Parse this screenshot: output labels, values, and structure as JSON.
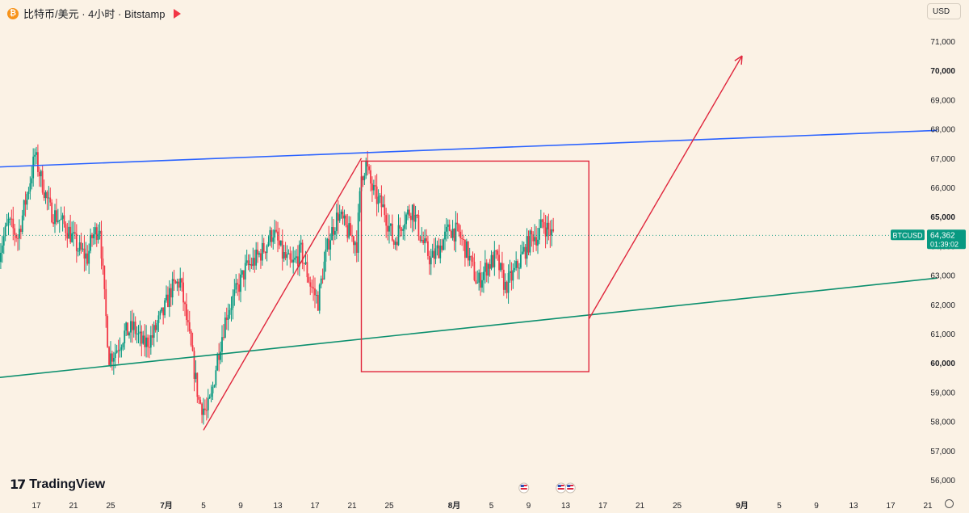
{
  "header": {
    "title": "比特币/美元 · 4小时 · Bitstamp",
    "currency": "USD"
  },
  "logo": {
    "text": "TradingView"
  },
  "price_tag": {
    "symbol": "BTCUSD",
    "price": "64,362",
    "countdown": "01:39:02"
  },
  "colors": {
    "up": "#089981",
    "down": "#f23645",
    "resistance": "#2962ff",
    "support": "#0b8f6e",
    "annotation": "#e0263c",
    "background": "#fbf2e5"
  },
  "chart_data": {
    "type": "candlestick",
    "y_axis": {
      "range": [
        55700,
        71800
      ],
      "ticks": [
        56000,
        57000,
        58000,
        59000,
        60000,
        61000,
        62000,
        63000,
        64000,
        65000,
        66000,
        67000,
        68000,
        69000,
        70000,
        71000
      ],
      "tick_labels": [
        "56,000",
        "57,000",
        "58,000",
        "59,000",
        "60,000",
        "61,000",
        "62,000",
        "63,000",
        "64,000",
        "65,000",
        "66,000",
        "67,000",
        "68,000",
        "69,000",
        "70,000",
        "71,000"
      ],
      "bold_labels": [
        "60,000",
        "65,000",
        "70,000"
      ]
    },
    "x_axis": {
      "ticks": [
        {
          "date": "2024-06-17",
          "label": "17"
        },
        {
          "date": "2024-06-21",
          "label": "21"
        },
        {
          "date": "2024-06-25",
          "label": "25"
        },
        {
          "date": "2024-07-01",
          "label": "7月",
          "bold": true
        },
        {
          "date": "2024-07-05",
          "label": "5"
        },
        {
          "date": "2024-07-09",
          "label": "9"
        },
        {
          "date": "2024-07-13",
          "label": "13"
        },
        {
          "date": "2024-07-17",
          "label": "17"
        },
        {
          "date": "2024-07-21",
          "label": "21"
        },
        {
          "date": "2024-07-25",
          "label": "25"
        },
        {
          "date": "2024-08-01",
          "label": "8月",
          "bold": true
        },
        {
          "date": "2024-08-05",
          "label": "5"
        },
        {
          "date": "2024-08-09",
          "label": "9"
        },
        {
          "date": "2024-08-13",
          "label": "13"
        },
        {
          "date": "2024-08-17",
          "label": "17"
        },
        {
          "date": "2024-08-21",
          "label": "21"
        },
        {
          "date": "2024-08-25",
          "label": "25"
        },
        {
          "date": "2024-09-01",
          "label": "9月",
          "bold": true
        },
        {
          "date": "2024-09-05",
          "label": "5"
        },
        {
          "date": "2024-09-09",
          "label": "9"
        },
        {
          "date": "2024-09-13",
          "label": "13"
        },
        {
          "date": "2024-09-17",
          "label": "17"
        },
        {
          "date": "2024-09-21",
          "label": "21"
        }
      ]
    },
    "price_path": [
      [
        "2024-06-13T00:00",
        63800
      ],
      [
        "2024-06-14T00:00",
        64800
      ],
      [
        "2024-06-15T00:00",
        64300
      ],
      [
        "2024-06-16T12:00",
        66500
      ],
      [
        "2024-06-16T20:00",
        67100
      ],
      [
        "2024-06-17T12:00",
        66300
      ],
      [
        "2024-06-18T12:00",
        65200
      ],
      [
        "2024-06-19T12:00",
        64900
      ],
      [
        "2024-06-20T12:00",
        64500
      ],
      [
        "2024-06-21T12:00",
        63900
      ],
      [
        "2024-06-22T12:00",
        63600
      ],
      [
        "2024-06-23T00:00",
        64300
      ],
      [
        "2024-06-23T20:00",
        64700
      ],
      [
        "2024-06-24T08:00",
        62200
      ],
      [
        "2024-06-24T20:00",
        60200
      ],
      [
        "2024-06-25T12:00",
        60400
      ],
      [
        "2024-06-26T12:00",
        61000
      ],
      [
        "2024-06-27T12:00",
        61200
      ],
      [
        "2024-06-28T12:00",
        60600
      ],
      [
        "2024-06-29T12:00",
        60900
      ],
      [
        "2024-06-30T00:00",
        61300
      ],
      [
        "2024-06-30T16:00",
        61700
      ],
      [
        "2024-07-01T12:00",
        62500
      ],
      [
        "2024-07-02T12:00",
        62800
      ],
      [
        "2024-07-03T12:00",
        60800
      ],
      [
        "2024-07-04T12:00",
        58700
      ],
      [
        "2024-07-05T08:00",
        58300
      ],
      [
        "2024-07-05T20:00",
        58800
      ],
      [
        "2024-07-06T12:00",
        60200
      ],
      [
        "2024-07-07T12:00",
        61700
      ],
      [
        "2024-07-08T12:00",
        62400
      ],
      [
        "2024-07-09T12:00",
        63200
      ],
      [
        "2024-07-10T12:00",
        63500
      ],
      [
        "2024-07-11T12:00",
        63900
      ],
      [
        "2024-07-12T12:00",
        64500
      ],
      [
        "2024-07-13T12:00",
        63700
      ],
      [
        "2024-07-14T12:00",
        63300
      ],
      [
        "2024-07-15T12:00",
        63800
      ],
      [
        "2024-07-16T12:00",
        62700
      ],
      [
        "2024-07-17T08:00",
        62100
      ],
      [
        "2024-07-17T20:00",
        63100
      ],
      [
        "2024-07-18T12:00",
        64200
      ],
      [
        "2024-07-19T12:00",
        65100
      ],
      [
        "2024-07-20T12:00",
        64500
      ],
      [
        "2024-07-21T12:00",
        64100
      ],
      [
        "2024-07-22T00:00",
        66400
      ],
      [
        "2024-07-22T12:00",
        66800
      ],
      [
        "2024-07-23T00:00",
        66100
      ],
      [
        "2024-07-23T12:00",
        65700
      ],
      [
        "2024-07-24T12:00",
        65200
      ],
      [
        "2024-07-25T12:00",
        64100
      ],
      [
        "2024-07-26T12:00",
        64900
      ],
      [
        "2024-07-27T12:00",
        65300
      ],
      [
        "2024-07-28T12:00",
        64200
      ],
      [
        "2024-07-29T12:00",
        63500
      ],
      [
        "2024-07-30T12:00",
        64000
      ],
      [
        "2024-07-31T12:00",
        64600
      ],
      [
        "2024-08-01T12:00",
        64400
      ],
      [
        "2024-08-02T12:00",
        63700
      ],
      [
        "2024-08-03T12:00",
        62700
      ],
      [
        "2024-08-04T12:00",
        63300
      ],
      [
        "2024-08-05T12:00",
        63600
      ],
      [
        "2024-08-06T12:00",
        62600
      ],
      [
        "2024-08-07T12:00",
        63100
      ],
      [
        "2024-08-08T12:00",
        63800
      ],
      [
        "2024-08-09T12:00",
        64400
      ],
      [
        "2024-08-10T00:00",
        64300
      ],
      [
        "2024-08-10T12:00",
        64800
      ],
      [
        "2024-08-11T00:00",
        64600
      ],
      [
        "2024-08-11T16:00",
        64362
      ]
    ],
    "last_price": 64362,
    "annotations": {
      "resistance_line": {
        "from": [
          "2024-06-13T00:00",
          66700
        ],
        "to": [
          "2024-09-22T00:00",
          67950
        ]
      },
      "support_line": {
        "from": [
          "2024-06-13T00:00",
          59500
        ],
        "to": [
          "2024-09-22T00:00",
          62900
        ]
      },
      "rally_line": {
        "from": [
          "2024-07-05T00:00",
          57700
        ],
        "to": [
          "2024-07-22T00:00",
          67000
        ]
      },
      "box": {
        "from": [
          "2024-07-22T00:00",
          66900
        ],
        "to": [
          "2024-08-15T12:00",
          59700
        ]
      },
      "arrow": {
        "points": [
          [
            "2024-08-15T12:00",
            61500
          ],
          [
            "2024-09-01T00:00",
            70500
          ]
        ]
      }
    },
    "event_markers": [
      "2024-08-08T12:00",
      "2024-08-12T12:00",
      "2024-08-13T12:00"
    ],
    "grid": false
  }
}
